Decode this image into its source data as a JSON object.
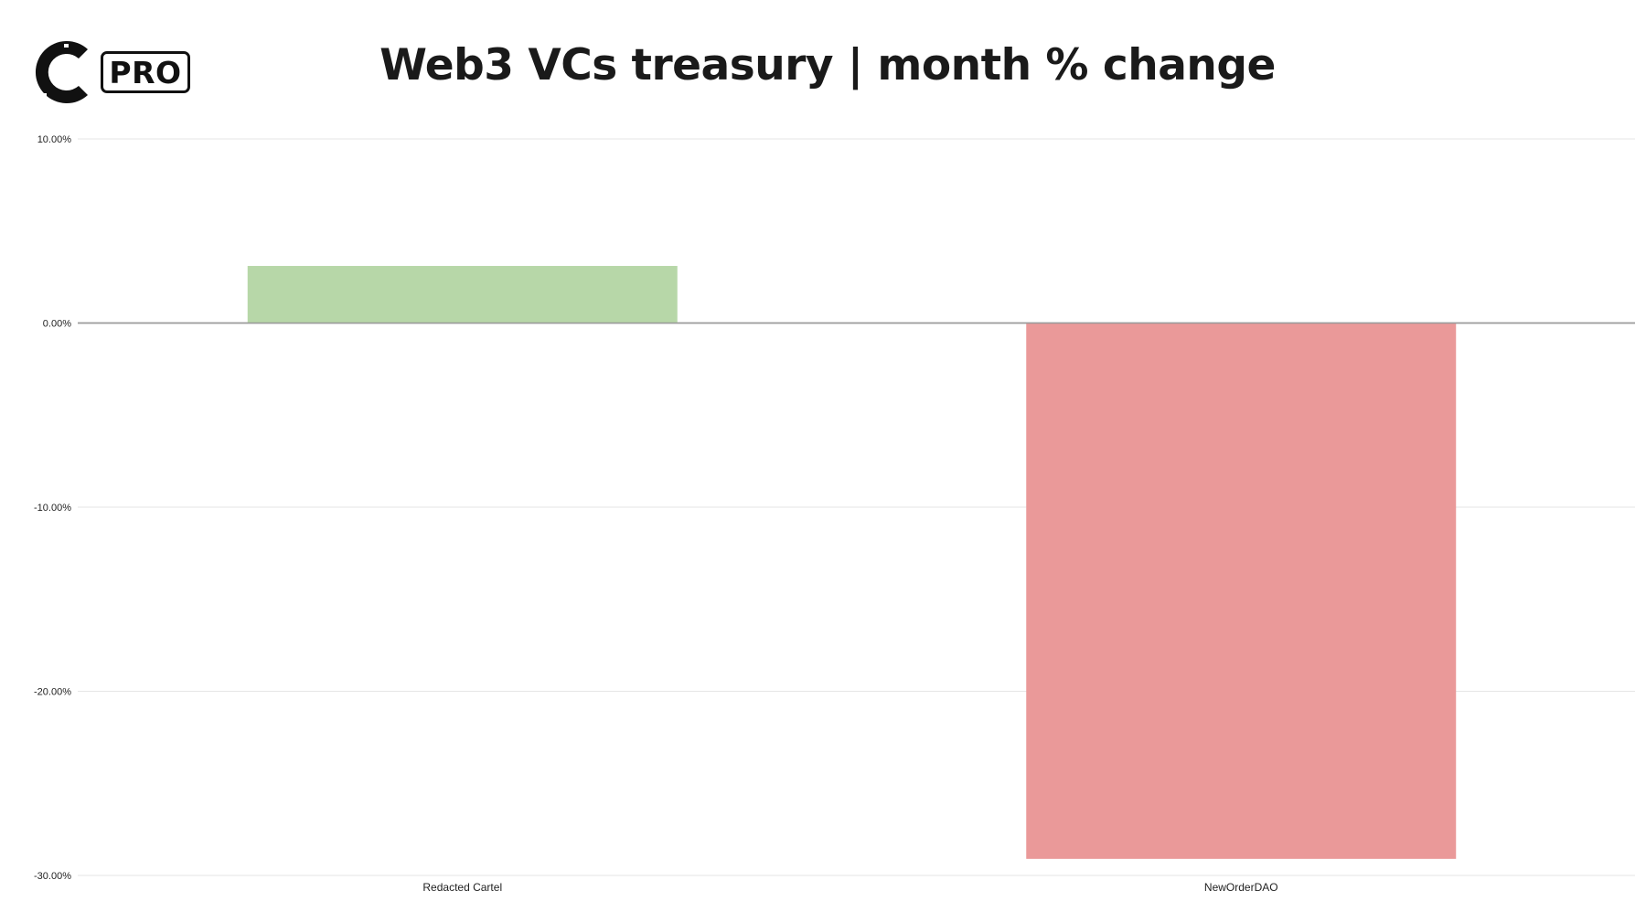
{
  "header": {
    "logo_text": "PRO",
    "title": "Web3 VCs treasury | month % change"
  },
  "colors": {
    "positive": "#b7d7a8",
    "negative": "#ea9999",
    "grid": "#e6e6e6",
    "zero_line": "#9a9a9a"
  },
  "chart_data": {
    "type": "bar",
    "title": "Web3 VCs treasury | month % change",
    "xlabel": "",
    "ylabel": "",
    "categories": [
      "Redacted Cartel",
      "NewOrderDAO"
    ],
    "values": [
      3.1,
      -29.1
    ],
    "ylim": [
      -30,
      10
    ],
    "yticks": [
      10,
      0,
      -10,
      -20,
      -30
    ],
    "ytick_labels": [
      "10.00%",
      "0.00%",
      "-10.00%",
      "-20.00%",
      "-30.00%"
    ],
    "grid": true,
    "legend": "none"
  }
}
